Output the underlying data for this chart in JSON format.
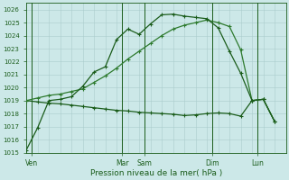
{
  "title": "Pression niveau de la mer( hPa )",
  "background_color": "#cce8e8",
  "grid_color": "#aacccc",
  "line_color_dark": "#1a5c1a",
  "line_color_mid": "#2d7a2d",
  "ylim": [
    1015,
    1026.5
  ],
  "yticks": [
    1015,
    1016,
    1017,
    1018,
    1019,
    1020,
    1021,
    1022,
    1023,
    1024,
    1025,
    1026
  ],
  "x_day_labels": [
    "Ven",
    "Mar",
    "Sam",
    "Dim",
    "Lun"
  ],
  "x_day_positions": [
    0.5,
    8.5,
    10.5,
    16.5,
    20.5
  ],
  "vline_positions": [
    0.5,
    8.5,
    10.5,
    16.5,
    20.5
  ],
  "x_total_pts": 23,
  "xlim": [
    0,
    23
  ],
  "series1_x": [
    0,
    1,
    2,
    3,
    4,
    5,
    6,
    7,
    8,
    9,
    10,
    11,
    12,
    13,
    14,
    15,
    16,
    17,
    18,
    19,
    20,
    21,
    22
  ],
  "series1_y": [
    1015.2,
    1016.9,
    1019.0,
    1019.1,
    1019.3,
    1020.1,
    1021.2,
    1021.6,
    1023.7,
    1024.5,
    1024.1,
    1024.9,
    1025.6,
    1025.65,
    1025.5,
    1025.4,
    1025.3,
    1024.6,
    1022.8,
    1021.1,
    1019.0,
    1019.1,
    1017.4
  ],
  "series2_x": [
    0,
    1,
    2,
    3,
    4,
    5,
    6,
    7,
    8,
    9,
    10,
    11,
    12,
    13,
    14,
    15,
    16,
    17,
    18,
    19,
    20,
    21,
    22
  ],
  "series2_y": [
    1019.0,
    1019.2,
    1019.4,
    1019.5,
    1019.7,
    1019.9,
    1020.4,
    1020.9,
    1021.5,
    1022.2,
    1022.8,
    1023.4,
    1024.0,
    1024.5,
    1024.8,
    1025.0,
    1025.2,
    1025.0,
    1024.7,
    1022.9,
    1019.0,
    1019.1,
    1017.4
  ],
  "series3_x": [
    0,
    1,
    2,
    3,
    4,
    5,
    6,
    7,
    8,
    9,
    10,
    11,
    12,
    13,
    14,
    15,
    16,
    17,
    18,
    19,
    20,
    21,
    22
  ],
  "series3_y": [
    1019.0,
    1018.9,
    1018.8,
    1018.75,
    1018.65,
    1018.55,
    1018.45,
    1018.35,
    1018.25,
    1018.2,
    1018.1,
    1018.05,
    1018.0,
    1017.95,
    1017.85,
    1017.9,
    1018.0,
    1018.05,
    1018.0,
    1017.8,
    1019.0,
    1019.1,
    1017.4
  ]
}
